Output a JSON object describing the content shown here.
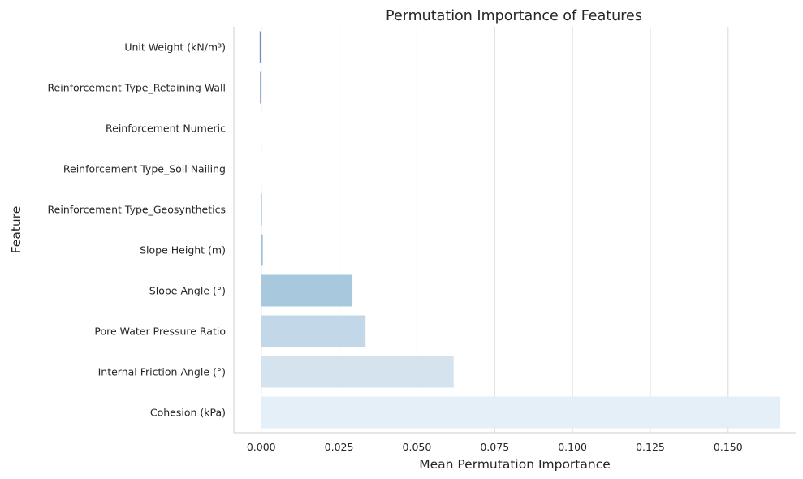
{
  "chart_data": {
    "type": "bar",
    "orientation": "horizontal",
    "title": "Permutation Importance of Features",
    "xlabel": "Mean Permutation Importance",
    "ylabel": "Feature",
    "categories": [
      "Unit Weight (kN/m³)",
      "Reinforcement Type_Retaining Wall",
      "Reinforcement Numeric",
      "Reinforcement Type_Soil Nailing",
      "Reinforcement Type_Geosynthetics",
      "Slope Height (m)",
      "Slope Angle (°)",
      "Pore Water Pressure Ratio",
      "Internal Friction Angle (°)",
      "Cohesion (kPa)"
    ],
    "values": [
      -0.0005,
      -0.0004,
      0.0,
      0.0001,
      0.0003,
      0.0005,
      0.0293,
      0.0335,
      0.0618,
      0.1668
    ],
    "colors": [
      "#6b8fc5",
      "#7b9fcd",
      "#ffffff",
      "#ffffff",
      "#b9cfe4",
      "#9fbfdd",
      "#a8c8de",
      "#c2d7e8",
      "#d5e3ef",
      "#e5eff8"
    ],
    "xticks": [
      "0.000",
      "0.025",
      "0.050",
      "0.075",
      "0.100",
      "0.125",
      "0.150"
    ],
    "xlim": [
      -0.0088,
      0.1717
    ],
    "grid": "vertical"
  }
}
